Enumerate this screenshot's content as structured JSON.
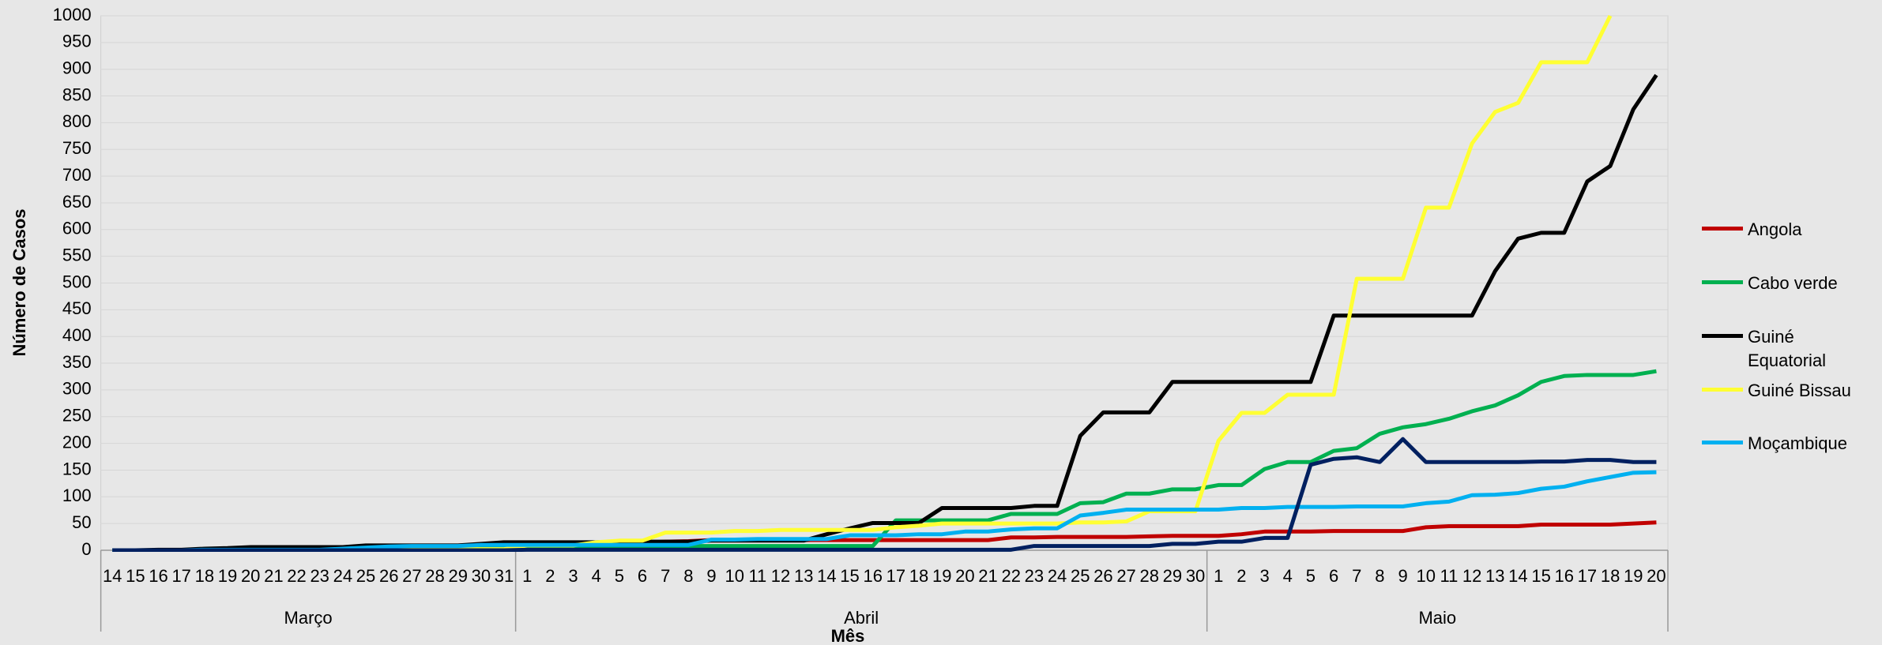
{
  "chart_data": {
    "type": "line",
    "ylabel": "Número de Casos",
    "xlabel": "Mês",
    "categories": [
      "14",
      "15",
      "16",
      "17",
      "18",
      "19",
      "20",
      "21",
      "22",
      "23",
      "24",
      "25",
      "26",
      "27",
      "28",
      "29",
      "30",
      "31",
      "1",
      "2",
      "3",
      "4",
      "5",
      "6",
      "7",
      "8",
      "9",
      "10",
      "11",
      "12",
      "13",
      "14",
      "15",
      "16",
      "17",
      "18",
      "19",
      "20",
      "21",
      "22",
      "23",
      "24",
      "25",
      "26",
      "27",
      "28",
      "29",
      "30",
      "1",
      "2",
      "3",
      "4",
      "5",
      "6",
      "7",
      "8",
      "9",
      "10",
      "11",
      "12",
      "13",
      "14",
      "15",
      "16",
      "17",
      "18",
      "19",
      "20"
    ],
    "category_groups": [
      {
        "label": "Março",
        "count": 18
      },
      {
        "label": "Abril",
        "count": 30
      },
      {
        "label": "Maio",
        "count": 20
      }
    ],
    "ylim": [
      0,
      1000
    ],
    "yticks": [
      0,
      50,
      100,
      150,
      200,
      250,
      300,
      350,
      400,
      450,
      500,
      550,
      600,
      650,
      700,
      750,
      800,
      850,
      900,
      950,
      1000
    ],
    "grid": true,
    "legend": "right",
    "series": [
      {
        "name": "Angola",
        "color": "#c00000",
        "values": [
          0,
          0,
          0,
          0,
          0,
          0,
          0,
          1,
          2,
          2,
          3,
          3,
          4,
          5,
          7,
          7,
          7,
          7,
          8,
          8,
          8,
          8,
          10,
          14,
          16,
          17,
          19,
          19,
          19,
          19,
          19,
          19,
          19,
          19,
          19,
          19,
          19,
          19,
          19,
          24,
          24,
          25,
          25,
          25,
          25,
          26,
          27,
          27,
          27,
          30,
          35,
          35,
          35,
          36,
          36,
          36,
          36,
          43,
          45,
          45,
          45,
          45,
          48,
          48,
          48,
          48,
          50,
          52
        ]
      },
      {
        "name": "Cabo verde",
        "color": "#00b050",
        "values": [
          0,
          0,
          0,
          0,
          0,
          0,
          0,
          1,
          1,
          2,
          3,
          3,
          4,
          5,
          5,
          5,
          6,
          6,
          7,
          7,
          7,
          7,
          8,
          8,
          8,
          8,
          8,
          8,
          8,
          8,
          8,
          8,
          8,
          8,
          56,
          56,
          56,
          56,
          56,
          68,
          68,
          68,
          88,
          90,
          106,
          106,
          114,
          114,
          122,
          122,
          152,
          165,
          165,
          186,
          191,
          218,
          230,
          236,
          246,
          260,
          271,
          290,
          315,
          326,
          328,
          328,
          328,
          335
        ]
      },
      {
        "name": "Guiné Equatorial",
        "color": "#000000",
        "values": [
          0,
          0,
          1,
          1,
          3,
          4,
          6,
          6,
          6,
          6,
          6,
          9,
          9,
          9,
          9,
          9,
          12,
          15,
          15,
          15,
          15,
          15,
          16,
          16,
          16,
          16,
          18,
          18,
          18,
          18,
          18,
          30,
          41,
          51,
          51,
          51,
          79,
          79,
          79,
          79,
          83,
          83,
          214,
          258,
          258,
          258,
          315,
          315,
          315,
          315,
          315,
          315,
          315,
          439,
          439,
          439,
          439,
          439,
          439,
          439,
          522,
          583,
          594,
          594,
          690,
          719,
          825,
          889
        ]
      },
      {
        "name": "Guiné Bissau",
        "color": "#ffff33",
        "values": [
          0,
          0,
          0,
          0,
          0,
          0,
          0,
          0,
          0,
          0,
          2,
          2,
          2,
          2,
          2,
          2,
          2,
          2,
          9,
          9,
          9,
          15,
          18,
          18,
          33,
          33,
          33,
          36,
          36,
          38,
          38,
          38,
          38,
          38,
          43,
          46,
          50,
          50,
          50,
          50,
          50,
          50,
          52,
          52,
          54,
          73,
          73,
          73,
          205,
          257,
          257,
          291,
          291,
          291,
          508,
          508,
          508,
          641,
          641,
          761,
          820,
          837,
          913,
          913,
          913,
          1000,
          null,
          null
        ]
      },
      {
        "name": "Moçambique",
        "color": "#00b0f0",
        "values": [
          0,
          0,
          0,
          0,
          1,
          1,
          1,
          1,
          1,
          1,
          3,
          5,
          7,
          8,
          8,
          8,
          10,
          10,
          10,
          10,
          10,
          10,
          10,
          10,
          10,
          10,
          20,
          20,
          21,
          21,
          21,
          21,
          28,
          28,
          28,
          30,
          30,
          35,
          35,
          39,
          41,
          41,
          65,
          70,
          76,
          76,
          76,
          76,
          76,
          79,
          79,
          81,
          81,
          81,
          82,
          82,
          82,
          88,
          91,
          103,
          104,
          107,
          115,
          119,
          129,
          137,
          145,
          146
        ]
      },
      {
        "color": "#002060",
        "values": [
          0,
          0,
          0,
          0,
          0,
          0,
          0,
          0,
          0,
          0,
          0,
          0,
          0,
          0,
          0,
          0,
          0,
          0,
          1,
          1,
          1,
          1,
          1,
          1,
          1,
          1,
          1,
          1,
          1,
          1,
          1,
          1,
          1,
          1,
          1,
          1,
          1,
          1,
          1,
          1,
          8,
          8,
          8,
          8,
          8,
          8,
          12,
          12,
          16,
          16,
          23,
          23,
          160,
          171,
          174,
          165,
          208,
          165,
          165,
          165,
          165,
          165,
          166,
          166,
          169,
          169,
          165,
          165
        ]
      }
    ]
  }
}
